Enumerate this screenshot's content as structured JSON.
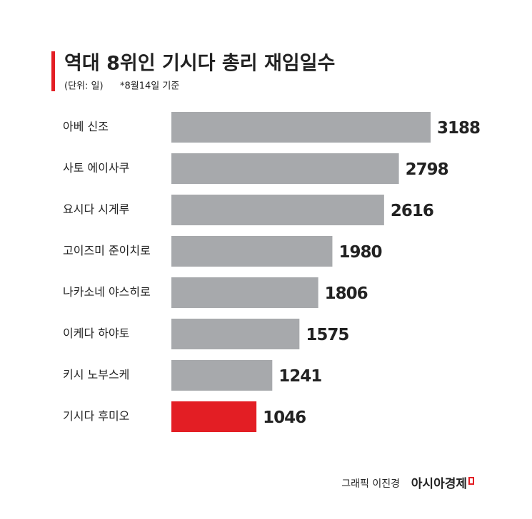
{
  "chart_data": {
    "type": "hbar",
    "title": "역대 8위인 기시다 총리 재임일수",
    "subtitle": "(단위: 일)",
    "note": "*8월14일 기준",
    "categories": [
      "아베 신조",
      "사토 에이사쿠",
      "요시다 시게루",
      "고이즈미 준이치로",
      "나카소네 야스히로",
      "이케다 하야토",
      "키시 노부스케",
      "기시다 후미오"
    ],
    "values": [
      3188,
      2798,
      2616,
      1980,
      1806,
      1575,
      1241,
      1046
    ],
    "colors": [
      "#a7a9ac",
      "#a7a9ac",
      "#a7a9ac",
      "#a7a9ac",
      "#a7a9ac",
      "#a7a9ac",
      "#a7a9ac",
      "#e31e24"
    ],
    "credit": "그래픽 이진경",
    "source": "아시아경제"
  }
}
